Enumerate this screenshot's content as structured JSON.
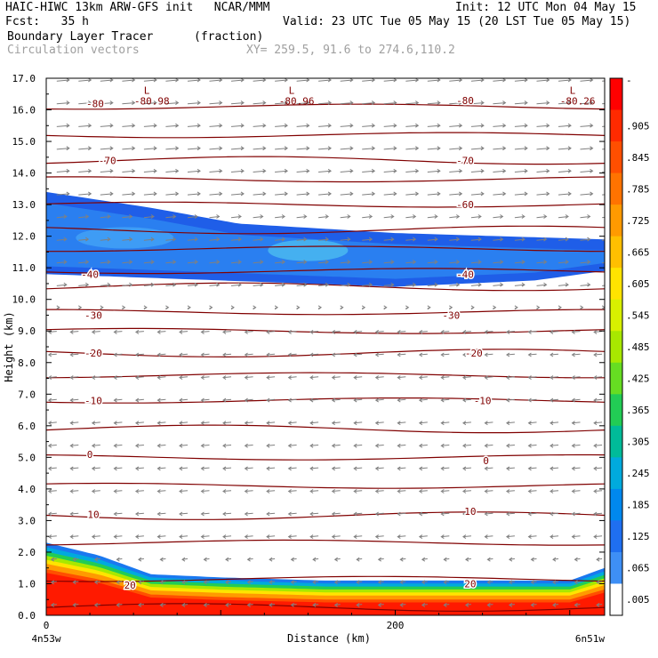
{
  "header": {
    "line1_left": "HAIC-HIWC 13km ARW-GFS init   NCAR/MMM",
    "line1_right": "Init: 12 UTC Mon 04 May 15",
    "line2_left": "Fcst:   35 h",
    "line2_right": "Valid: 23 UTC Tue 05 May 15 (20 LST Tue 05 May 15)",
    "field_name": "Boundary Layer Tracer",
    "field_units": "(fraction)",
    "vector_name": "Circulation vectors",
    "xy_range": "XY= 259.5, 91.6 to 274.6,110.2"
  },
  "chart_data": {
    "type": "heatmap",
    "title": "Boundary Layer Tracer (fraction)",
    "xlabel": "Distance (km)",
    "ylabel": "Height (km)",
    "xlim": [
      0,
      320
    ],
    "ylim": [
      0,
      17
    ],
    "x_ticks": [
      {
        "value": 0,
        "label": "0"
      },
      {
        "value": 200,
        "label": "200"
      }
    ],
    "x_end_labels": [
      "4n53w",
      "6n51w"
    ],
    "y_ticks": [
      "0.0",
      "1.0",
      "2.0",
      "3.0",
      "4.0",
      "5.0",
      "6.0",
      "7.0",
      "8.0",
      "9.0",
      "10.0",
      "11.0",
      "12.0",
      "13.0",
      "14.0",
      "15.0",
      "16.0",
      "17.0"
    ],
    "colorbar": {
      "labels": [
        "-",
        ".905",
        ".845",
        ".785",
        ".725",
        ".665",
        ".605",
        ".545",
        ".485",
        ".425",
        ".365",
        ".305",
        ".245",
        ".185",
        ".125",
        ".065",
        ".005"
      ],
      "colors": [
        "#ff0000",
        "#ff2a00",
        "#ff4f00",
        "#ff7300",
        "#ff9a00",
        "#ffbf00",
        "#ffe400",
        "#d8f000",
        "#a8e800",
        "#66dd22",
        "#22cc55",
        "#00bb99",
        "#00aadd",
        "#0088ee",
        "#1f6ff0",
        "#3e8ff5",
        "#ffffff"
      ]
    },
    "tracer_layers": {
      "upper_layer_km": {
        "top": [
          [
            0,
            13.4
          ],
          [
            60,
            12.9
          ],
          [
            110,
            12.4
          ],
          [
            200,
            12.1
          ],
          [
            320,
            11.9
          ]
        ],
        "bottom": [
          [
            0,
            10.8
          ],
          [
            100,
            10.6
          ],
          [
            200,
            10.4
          ],
          [
            280,
            10.6
          ],
          [
            320,
            10.9
          ]
        ],
        "max_fraction": 0.125
      },
      "boundary_layer_km": {
        "top": [
          [
            0,
            2.3
          ],
          [
            30,
            1.9
          ],
          [
            60,
            1.3
          ],
          [
            100,
            1.2
          ],
          [
            160,
            1.1
          ],
          [
            300,
            1.1
          ],
          [
            320,
            1.5
          ]
        ],
        "max_fraction": 0.905
      }
    },
    "isotherm_labels": [
      {
        "x": 28,
        "y": 16.2,
        "label": "-80"
      },
      {
        "x": 240,
        "y": 16.3,
        "label": "-80"
      },
      {
        "x": 35,
        "y": 14.4,
        "label": "-70"
      },
      {
        "x": 240,
        "y": 14.4,
        "label": "-70"
      },
      {
        "x": 240,
        "y": 13.0,
        "label": "-60"
      },
      {
        "x": 25,
        "y": 10.8,
        "label": "-40"
      },
      {
        "x": 240,
        "y": 10.8,
        "label": "-40"
      },
      {
        "x": 27,
        "y": 9.5,
        "label": "-30"
      },
      {
        "x": 232,
        "y": 9.5,
        "label": "-30"
      },
      {
        "x": 27,
        "y": 8.3,
        "label": "-20"
      },
      {
        "x": 245,
        "y": 8.3,
        "label": "-20"
      },
      {
        "x": 27,
        "y": 6.8,
        "label": "-10"
      },
      {
        "x": 250,
        "y": 6.8,
        "label": "-10"
      },
      {
        "x": 25,
        "y": 5.1,
        "label": "0"
      },
      {
        "x": 252,
        "y": 4.9,
        "label": "0"
      },
      {
        "x": 27,
        "y": 3.2,
        "label": "10"
      },
      {
        "x": 243,
        "y": 3.3,
        "label": "10"
      },
      {
        "x": 48,
        "y": 0.95,
        "label": "20"
      },
      {
        "x": 243,
        "y": 1.0,
        "label": "20"
      }
    ],
    "low_markers": [
      {
        "x": 60,
        "y": 16.65,
        "mark": "L",
        "label": "-80.98"
      },
      {
        "x": 143,
        "y": 16.65,
        "mark": "L",
        "label": "-80.96"
      },
      {
        "x": 304,
        "y": 16.65,
        "mark": "L",
        "label": "-80.26"
      }
    ],
    "isotherm_levels_km": [
      0.25,
      1.15,
      2.3,
      3.15,
      4.1,
      5.0,
      5.9,
      6.8,
      7.6,
      8.3,
      9.0,
      9.6,
      10.4,
      10.9,
      11.6,
      12.2,
      13.0,
      13.8,
      14.4,
      15.2,
      16.1
    ],
    "colors": {
      "isotherm": "#800000",
      "vector": "#808080",
      "axis": "#000000"
    }
  }
}
